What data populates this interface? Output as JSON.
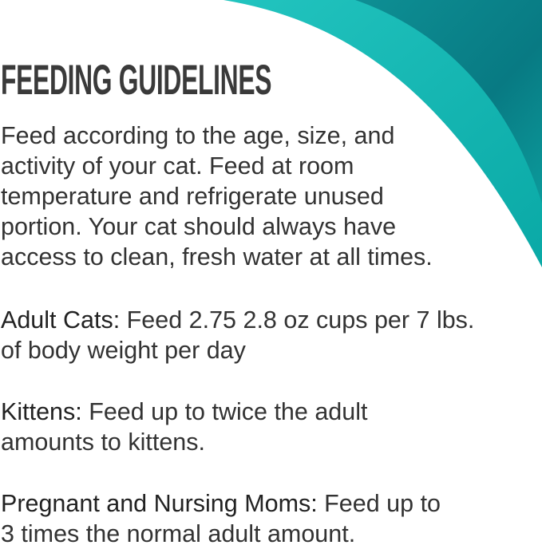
{
  "title": "FEEDING GUIDELINES",
  "intro": "Feed according to the age, size, and\nactivity of your cat. Feed at room\ntemperature and refrigerate unused\nportion. Your cat should always have\naccess to clean, fresh water at all times.",
  "sections": [
    {
      "label": "Adult Cats:",
      "text": " Feed 2.75 2.8 oz cups per 7 lbs.\nof body weight per day"
    },
    {
      "label": "Kittens:",
      "text": " Feed up to twice the adult\namounts to kittens."
    },
    {
      "label": "Pregnant and Nursing Moms:",
      "text": " Feed up to\n3 times the normal adult amount."
    }
  ],
  "colors": {
    "teal_light": "#13b3ae",
    "teal_dark": "#0b7f87",
    "text": "#333333"
  }
}
